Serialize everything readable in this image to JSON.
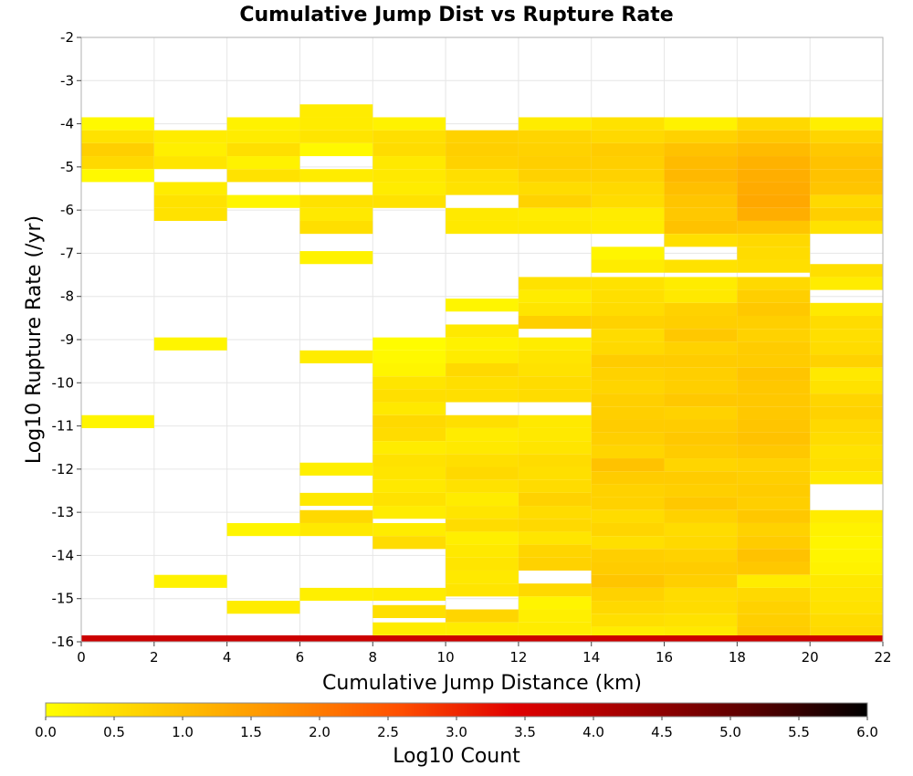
{
  "chart_data": {
    "type": "heatmap",
    "title": "Cumulative Jump Dist vs Rupture Rate",
    "xlabel": "Cumulative Jump Distance (km)",
    "ylabel": "Log10 Rupture Rate (/yr)",
    "xlim": [
      0,
      22
    ],
    "ylim": [
      -16,
      -2
    ],
    "x_bin_width": 2,
    "y_bin_height": 0.3,
    "xticks": [
      "0",
      "2",
      "4",
      "6",
      "8",
      "10",
      "12",
      "14",
      "16",
      "18",
      "20",
      "22"
    ],
    "yticks": [
      "-2",
      "-3",
      "-4",
      "-5",
      "-6",
      "-7",
      "-8",
      "-9",
      "-10",
      "-11",
      "-12",
      "-13",
      "-14",
      "-15",
      "-16"
    ],
    "grid": true,
    "colorbar": {
      "label": "Log10 Count",
      "range": [
        0,
        6
      ],
      "ticks": [
        "0.0",
        "0.5",
        "1.0",
        "1.5",
        "2.0",
        "2.5",
        "3.0",
        "3.5",
        "4.0",
        "4.5",
        "5.0",
        "5.5",
        "6.0"
      ],
      "colors": [
        "#ffff00",
        "#ffc800",
        "#ff9000",
        "#ff5000",
        "#e00000",
        "#a00000",
        "#5a0000",
        "#000000"
      ]
    },
    "columns": [
      {
        "x": 0,
        "cells": [
          [
            -4.0,
            0.1
          ],
          [
            -4.3,
            0.45
          ],
          [
            -4.6,
            0.75
          ],
          [
            -4.9,
            0.6
          ],
          [
            -5.2,
            0.1
          ],
          [
            -10.9,
            0.15
          ],
          [
            -16.0,
            3.7
          ]
        ]
      },
      {
        "x": 2,
        "cells": [
          [
            -4.3,
            0.3
          ],
          [
            -4.6,
            0.25
          ],
          [
            -4.9,
            0.4
          ],
          [
            -5.5,
            0.3
          ],
          [
            -5.8,
            0.45
          ],
          [
            -6.1,
            0.45
          ],
          [
            -9.1,
            0.15
          ],
          [
            -14.6,
            0.2
          ],
          [
            -16.0,
            3.7
          ]
        ]
      },
      {
        "x": 4,
        "cells": [
          [
            -4.0,
            0.2
          ],
          [
            -4.3,
            0.3
          ],
          [
            -4.6,
            0.5
          ],
          [
            -4.9,
            0.2
          ],
          [
            -5.2,
            0.45
          ],
          [
            -5.8,
            0.15
          ],
          [
            -13.4,
            0.15
          ],
          [
            -15.2,
            0.3
          ],
          [
            -16.0,
            3.7
          ]
        ]
      },
      {
        "x": 6,
        "cells": [
          [
            -3.7,
            0.3
          ],
          [
            -4.0,
            0.3
          ],
          [
            -4.3,
            0.4
          ],
          [
            -4.6,
            0.1
          ],
          [
            -5.2,
            0.3
          ],
          [
            -5.8,
            0.45
          ],
          [
            -6.1,
            0.35
          ],
          [
            -6.4,
            0.5
          ],
          [
            -7.1,
            0.2
          ],
          [
            -9.4,
            0.3
          ],
          [
            -12.0,
            0.25
          ],
          [
            -12.7,
            0.35
          ],
          [
            -13.1,
            0.6
          ],
          [
            -13.4,
            0.35
          ],
          [
            -14.9,
            0.25
          ],
          [
            -16.0,
            3.7
          ]
        ]
      },
      {
        "x": 8,
        "cells": [
          [
            -4.0,
            0.2
          ],
          [
            -4.3,
            0.5
          ],
          [
            -4.6,
            0.55
          ],
          [
            -4.9,
            0.35
          ],
          [
            -5.2,
            0.35
          ],
          [
            -5.5,
            0.3
          ],
          [
            -5.8,
            0.45
          ],
          [
            -9.1,
            0.05
          ],
          [
            -9.4,
            0.1
          ],
          [
            -9.7,
            0.15
          ],
          [
            -10.0,
            0.4
          ],
          [
            -10.3,
            0.5
          ],
          [
            -10.6,
            0.35
          ],
          [
            -10.9,
            0.6
          ],
          [
            -11.2,
            0.55
          ],
          [
            -11.5,
            0.3
          ],
          [
            -11.8,
            0.45
          ],
          [
            -12.1,
            0.4
          ],
          [
            -12.4,
            0.35
          ],
          [
            -12.7,
            0.45
          ],
          [
            -13.0,
            0.3
          ],
          [
            -13.4,
            0.3
          ],
          [
            -13.7,
            0.55
          ],
          [
            -14.9,
            0.3
          ],
          [
            -15.3,
            0.5
          ],
          [
            -15.7,
            0.3
          ]
        ]
      },
      {
        "x": 10,
        "cells": [
          [
            -4.3,
            0.7
          ],
          [
            -4.6,
            0.75
          ],
          [
            -4.9,
            0.7
          ],
          [
            -5.2,
            0.5
          ],
          [
            -5.5,
            0.45
          ],
          [
            -6.1,
            0.35
          ],
          [
            -6.4,
            0.35
          ],
          [
            -8.2,
            0.15
          ],
          [
            -8.8,
            0.35
          ],
          [
            -9.1,
            0.2
          ],
          [
            -9.4,
            0.3
          ],
          [
            -9.7,
            0.6
          ],
          [
            -10.0,
            0.5
          ],
          [
            -10.3,
            0.5
          ],
          [
            -10.9,
            0.5
          ],
          [
            -11.2,
            0.3
          ],
          [
            -11.5,
            0.35
          ],
          [
            -11.8,
            0.5
          ],
          [
            -12.1,
            0.6
          ],
          [
            -12.4,
            0.45
          ],
          [
            -12.7,
            0.3
          ],
          [
            -13.0,
            0.4
          ],
          [
            -13.3,
            0.55
          ],
          [
            -13.6,
            0.25
          ],
          [
            -13.9,
            0.35
          ],
          [
            -14.2,
            0.4
          ],
          [
            -14.5,
            0.35
          ],
          [
            -14.8,
            0.4
          ],
          [
            -15.4,
            0.65
          ],
          [
            -15.7,
            0.3
          ]
        ]
      },
      {
        "x": 12,
        "cells": [
          [
            -4.0,
            0.3
          ],
          [
            -4.3,
            0.65
          ],
          [
            -4.6,
            0.7
          ],
          [
            -4.9,
            0.75
          ],
          [
            -5.2,
            0.7
          ],
          [
            -5.5,
            0.55
          ],
          [
            -5.8,
            0.7
          ],
          [
            -6.1,
            0.3
          ],
          [
            -6.4,
            0.35
          ],
          [
            -7.7,
            0.45
          ],
          [
            -8.0,
            0.3
          ],
          [
            -8.3,
            0.4
          ],
          [
            -8.6,
            0.75
          ],
          [
            -9.1,
            0.3
          ],
          [
            -9.4,
            0.4
          ],
          [
            -9.7,
            0.45
          ],
          [
            -10.0,
            0.55
          ],
          [
            -10.3,
            0.55
          ],
          [
            -10.9,
            0.35
          ],
          [
            -11.2,
            0.35
          ],
          [
            -11.5,
            0.4
          ],
          [
            -11.8,
            0.55
          ],
          [
            -12.1,
            0.5
          ],
          [
            -12.4,
            0.55
          ],
          [
            -12.7,
            0.7
          ],
          [
            -13.0,
            0.55
          ],
          [
            -13.3,
            0.6
          ],
          [
            -13.6,
            0.4
          ],
          [
            -13.9,
            0.65
          ],
          [
            -14.2,
            0.7
          ],
          [
            -14.8,
            0.6
          ],
          [
            -15.1,
            0.15
          ],
          [
            -15.4,
            0.25
          ],
          [
            -15.7,
            0.3
          ]
        ]
      },
      {
        "x": 14,
        "cells": [
          [
            -4.0,
            0.45
          ],
          [
            -4.3,
            0.6
          ],
          [
            -4.6,
            0.8
          ],
          [
            -4.9,
            0.75
          ],
          [
            -5.2,
            0.7
          ],
          [
            -5.5,
            0.6
          ],
          [
            -5.8,
            0.55
          ],
          [
            -6.1,
            0.3
          ],
          [
            -6.4,
            0.3
          ],
          [
            -7.0,
            0.15
          ],
          [
            -7.3,
            0.3
          ],
          [
            -7.7,
            0.45
          ],
          [
            -8.0,
            0.5
          ],
          [
            -8.3,
            0.55
          ],
          [
            -8.6,
            0.7
          ],
          [
            -8.9,
            0.55
          ],
          [
            -9.2,
            0.6
          ],
          [
            -9.5,
            0.8
          ],
          [
            -9.8,
            0.7
          ],
          [
            -10.1,
            0.65
          ],
          [
            -10.4,
            0.75
          ],
          [
            -10.7,
            0.75
          ],
          [
            -11.0,
            0.8
          ],
          [
            -11.3,
            0.75
          ],
          [
            -11.6,
            0.65
          ],
          [
            -11.9,
            0.95
          ],
          [
            -12.2,
            0.8
          ],
          [
            -12.5,
            0.7
          ],
          [
            -12.8,
            0.7
          ],
          [
            -13.1,
            0.55
          ],
          [
            -13.4,
            0.65
          ],
          [
            -13.7,
            0.5
          ],
          [
            -14.0,
            0.75
          ],
          [
            -14.3,
            0.8
          ],
          [
            -14.6,
            0.9
          ],
          [
            -14.9,
            0.7
          ],
          [
            -15.2,
            0.6
          ],
          [
            -15.5,
            0.5
          ],
          [
            -15.8,
            0.3
          ]
        ]
      },
      {
        "x": 16,
        "cells": [
          [
            -4.0,
            0.2
          ],
          [
            -4.3,
            0.7
          ],
          [
            -4.6,
            0.95
          ],
          [
            -4.9,
            1.05
          ],
          [
            -5.2,
            1.1
          ],
          [
            -5.5,
            1.0
          ],
          [
            -5.8,
            0.9
          ],
          [
            -6.1,
            0.85
          ],
          [
            -6.4,
            0.95
          ],
          [
            -6.7,
            0.5
          ],
          [
            -7.3,
            0.45
          ],
          [
            -7.7,
            0.3
          ],
          [
            -8.0,
            0.35
          ],
          [
            -8.3,
            0.7
          ],
          [
            -8.6,
            0.75
          ],
          [
            -8.9,
            0.85
          ],
          [
            -9.2,
            0.7
          ],
          [
            -9.5,
            0.8
          ],
          [
            -9.8,
            0.75
          ],
          [
            -10.1,
            0.75
          ],
          [
            -10.4,
            0.85
          ],
          [
            -10.7,
            0.7
          ],
          [
            -11.0,
            0.8
          ],
          [
            -11.3,
            0.85
          ],
          [
            -11.6,
            0.8
          ],
          [
            -11.9,
            0.65
          ],
          [
            -12.2,
            0.8
          ],
          [
            -12.5,
            0.75
          ],
          [
            -12.8,
            0.85
          ],
          [
            -13.1,
            0.7
          ],
          [
            -13.4,
            0.55
          ],
          [
            -13.7,
            0.6
          ],
          [
            -14.0,
            0.7
          ],
          [
            -14.3,
            0.8
          ],
          [
            -14.6,
            0.75
          ],
          [
            -14.9,
            0.55
          ],
          [
            -15.2,
            0.55
          ],
          [
            -15.5,
            0.45
          ],
          [
            -15.8,
            0.35
          ]
        ]
      },
      {
        "x": 18,
        "cells": [
          [
            -4.0,
            0.6
          ],
          [
            -4.3,
            0.85
          ],
          [
            -4.6,
            1.05
          ],
          [
            -4.9,
            1.2
          ],
          [
            -5.2,
            1.25
          ],
          [
            -5.5,
            1.3
          ],
          [
            -5.8,
            1.35
          ],
          [
            -6.1,
            1.25
          ],
          [
            -6.4,
            0.9
          ],
          [
            -6.7,
            0.6
          ],
          [
            -7.0,
            0.55
          ],
          [
            -7.3,
            0.5
          ],
          [
            -7.7,
            0.6
          ],
          [
            -8.0,
            0.75
          ],
          [
            -8.3,
            0.85
          ],
          [
            -8.6,
            0.75
          ],
          [
            -8.9,
            0.7
          ],
          [
            -9.2,
            0.8
          ],
          [
            -9.5,
            0.8
          ],
          [
            -9.8,
            0.9
          ],
          [
            -10.1,
            0.85
          ],
          [
            -10.4,
            0.85
          ],
          [
            -10.7,
            0.85
          ],
          [
            -11.0,
            0.9
          ],
          [
            -11.3,
            0.95
          ],
          [
            -11.6,
            0.85
          ],
          [
            -11.9,
            0.7
          ],
          [
            -12.2,
            0.75
          ],
          [
            -12.5,
            0.8
          ],
          [
            -12.8,
            0.75
          ],
          [
            -13.1,
            0.85
          ],
          [
            -13.4,
            0.7
          ],
          [
            -13.7,
            0.8
          ],
          [
            -14.0,
            0.95
          ],
          [
            -14.3,
            0.85
          ],
          [
            -14.6,
            0.3
          ],
          [
            -14.9,
            0.6
          ],
          [
            -15.2,
            0.7
          ],
          [
            -15.5,
            0.75
          ],
          [
            -15.8,
            0.8
          ]
        ]
      },
      {
        "x": 20,
        "cells": [
          [
            -4.0,
            0.25
          ],
          [
            -4.3,
            0.65
          ],
          [
            -4.6,
            0.85
          ],
          [
            -4.9,
            0.95
          ],
          [
            -5.2,
            0.95
          ],
          [
            -5.5,
            0.9
          ],
          [
            -5.8,
            0.6
          ],
          [
            -6.1,
            0.75
          ],
          [
            -6.4,
            0.45
          ],
          [
            -7.4,
            0.5
          ],
          [
            -7.7,
            0.3
          ],
          [
            -8.3,
            0.35
          ],
          [
            -8.6,
            0.55
          ],
          [
            -8.9,
            0.5
          ],
          [
            -9.2,
            0.55
          ],
          [
            -9.5,
            0.7
          ],
          [
            -9.8,
            0.35
          ],
          [
            -10.1,
            0.45
          ],
          [
            -10.4,
            0.65
          ],
          [
            -10.7,
            0.7
          ],
          [
            -11.0,
            0.6
          ],
          [
            -11.3,
            0.55
          ],
          [
            -11.6,
            0.45
          ],
          [
            -11.9,
            0.5
          ],
          [
            -12.2,
            0.35
          ],
          [
            -13.1,
            0.3
          ],
          [
            -13.4,
            0.2
          ],
          [
            -13.7,
            0.15
          ],
          [
            -14.0,
            0.15
          ],
          [
            -14.3,
            0.2
          ],
          [
            -14.6,
            0.35
          ],
          [
            -14.9,
            0.4
          ],
          [
            -15.2,
            0.45
          ],
          [
            -15.5,
            0.55
          ],
          [
            -15.8,
            0.6
          ]
        ]
      }
    ],
    "bottom_row": {
      "x_range": [
        0,
        22
      ],
      "y": -16.0,
      "value": 3.7
    }
  }
}
